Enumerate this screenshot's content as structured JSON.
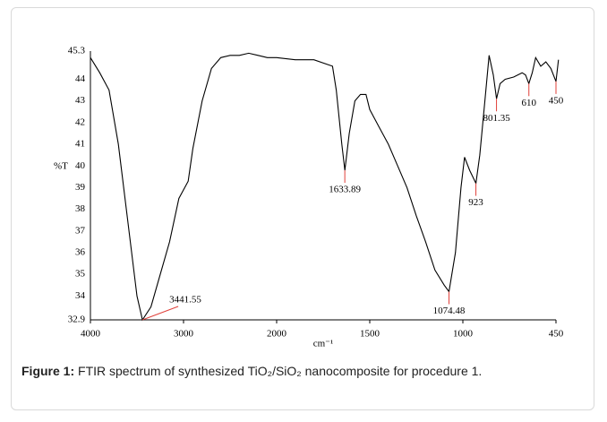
{
  "chart_data": {
    "type": "line",
    "y_label": "%T",
    "x_label": "cm⁻¹",
    "x": [
      4000,
      3900,
      3800,
      3700,
      3600,
      3500,
      3441.55,
      3350,
      3250,
      3150,
      3050,
      2950,
      2900,
      2800,
      2700,
      2600,
      2500,
      2400,
      2300,
      2200,
      2100,
      2000,
      1900,
      1800,
      1700,
      1680,
      1650,
      1633.89,
      1610,
      1580,
      1550,
      1520,
      1500,
      1450,
      1400,
      1350,
      1300,
      1250,
      1200,
      1150,
      1100,
      1074.48,
      1040,
      1010,
      990,
      960,
      923,
      900,
      870,
      845,
      820,
      801.35,
      780,
      750,
      700,
      650,
      630,
      610,
      590,
      570,
      540,
      510,
      480,
      450,
      435
    ],
    "series": [
      {
        "color": "#000000",
        "values": [
          45.0,
          44.3,
          43.5,
          41.0,
          37.5,
          34.0,
          32.9,
          33.5,
          35.0,
          36.5,
          38.5,
          39.3,
          40.8,
          43.0,
          44.5,
          45.0,
          45.1,
          45.1,
          45.2,
          45.1,
          45.0,
          45.0,
          44.9,
          44.9,
          44.6,
          43.5,
          41.0,
          39.8,
          41.5,
          43.0,
          43.3,
          43.3,
          42.6,
          41.8,
          41.0,
          40.0,
          39.0,
          37.7,
          36.5,
          35.2,
          34.5,
          34.2,
          36.0,
          39.0,
          40.4,
          39.8,
          39.2,
          40.5,
          43.0,
          45.1,
          44.2,
          43.1,
          43.8,
          44.0,
          44.1,
          44.3,
          44.2,
          43.8,
          44.3,
          45.0,
          44.6,
          44.8,
          44.5,
          43.9,
          44.9
        ]
      }
    ],
    "xlim": [
      4000,
      450
    ],
    "xticks": [
      4000,
      3000,
      2000,
      1500,
      1000,
      450
    ],
    "ylim": [
      32.9,
      45.3
    ],
    "yticks": [
      32.9,
      34,
      35,
      36,
      37,
      38,
      39,
      40,
      41,
      42,
      43,
      44,
      45.3
    ],
    "annotations": [
      {
        "x": 3441.55,
        "y": 32.9
      },
      {
        "x": 1633.89,
        "y": 39.8
      },
      {
        "x": 1074.48,
        "y": 34.2
      },
      {
        "x": 923,
        "y": 39.2
      },
      {
        "x": 801.35,
        "y": 43.1
      },
      {
        "x": 610,
        "y": 43.8
      },
      {
        "x": 450,
        "y": 43.9
      }
    ],
    "annotation_color": "#e0403a"
  },
  "caption": {
    "label": "Figure 1:",
    "text": "FTIR spectrum of synthesized TiO₂/SiO₂ nanocomposite for procedure 1."
  }
}
